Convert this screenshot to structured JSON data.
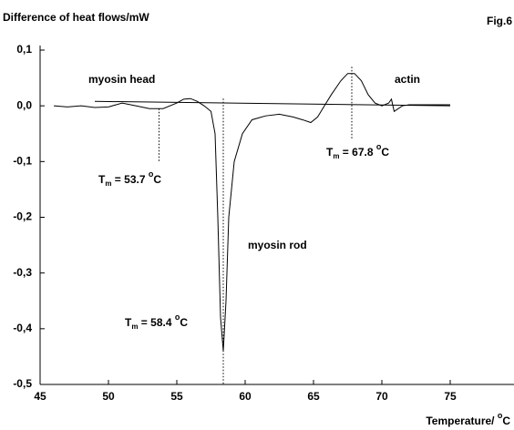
{
  "chart_data": {
    "type": "line",
    "title": "Difference of heat flows/mW",
    "figure_label": "Fig.6",
    "xlabel": {
      "text": "Temperature/ ",
      "degree": "o",
      "unit": "C"
    },
    "xlim": [
      45,
      79.5
    ],
    "xticks": [
      45,
      50,
      55,
      60,
      65,
      70,
      75
    ],
    "ylim": [
      -0.5,
      0.1
    ],
    "yticks": [
      {
        "value": 0.1,
        "label": "0,1"
      },
      {
        "value": 0.0,
        "label": "0,0"
      },
      {
        "value": -0.1,
        "label": "-0,1"
      },
      {
        "value": -0.2,
        "label": "-0,2"
      },
      {
        "value": -0.3,
        "label": "-0,3"
      },
      {
        "value": -0.4,
        "label": "-0,4"
      },
      {
        "value": -0.5,
        "label": "-0,5"
      }
    ],
    "series": [
      {
        "color": "#000000",
        "x": [
          46,
          47,
          48,
          49,
          50,
          51,
          52,
          53,
          54,
          55,
          55.5,
          56,
          56.5,
          57,
          57.5,
          57.8,
          58.0,
          58.2,
          58.4,
          58.6,
          58.8,
          59.2,
          59.8,
          60.5,
          61.5,
          62.5,
          63.5,
          64.2,
          64.8,
          65.3,
          65.8,
          66.3,
          67,
          67.5,
          68,
          68.5,
          69,
          69.5,
          70,
          70.5,
          70.7,
          70.9,
          71.5,
          72,
          73,
          74,
          75
        ],
        "values": [
          0.0,
          -0.002,
          0.0,
          -0.003,
          -0.002,
          0.005,
          0.0,
          -0.005,
          -0.005,
          0.005,
          0.012,
          0.013,
          0.008,
          0.0,
          -0.01,
          -0.05,
          -0.2,
          -0.38,
          -0.44,
          -0.35,
          -0.2,
          -0.1,
          -0.05,
          -0.025,
          -0.018,
          -0.015,
          -0.02,
          -0.025,
          -0.03,
          -0.02,
          0.0,
          0.02,
          0.045,
          0.058,
          0.058,
          0.045,
          0.02,
          0.005,
          0.0,
          0.005,
          0.012,
          -0.01,
          0.0,
          0.002,
          0.002,
          0.002,
          0.002
        ]
      }
    ],
    "baseline": {
      "x": [
        49,
        75
      ],
      "values": [
        0.008,
        0.0
      ]
    },
    "peak_labels": [
      "myosin head",
      "myosin rod",
      "actin"
    ],
    "annotations": [
      {
        "symbol": "T",
        "subscript": "m",
        "text": " = 53.7 ",
        "degree": "o",
        "unit": "C",
        "x": 53.7,
        "line": [
          -0.005,
          -0.1
        ]
      },
      {
        "symbol": "T",
        "subscript": "m",
        "text": " = 58.4 ",
        "degree": "o",
        "unit": "C",
        "x": 58.4,
        "line": [
          0.013,
          -0.5
        ]
      },
      {
        "symbol": "T",
        "subscript": "m",
        "text": " = 67.8 ",
        "degree": "o",
        "unit": "C",
        "x": 67.8,
        "line": [
          0.07,
          -0.06
        ]
      }
    ]
  }
}
